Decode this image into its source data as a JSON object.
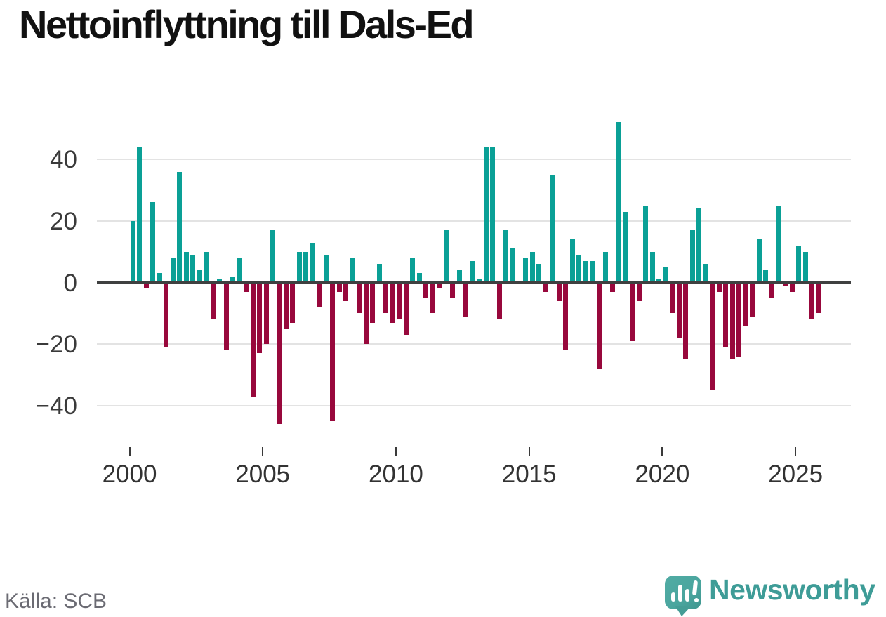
{
  "title": "Nettoinflyttning till Dals-Ed",
  "source": "Källa: SCB",
  "brand": {
    "name": "Newsworthy",
    "icon": "newsworthy-speech-bubble-bar-chart-icon",
    "color": "#3e9c97"
  },
  "colors": {
    "positive": "#0aa096",
    "negative": "#98083c",
    "gridline": "#e3e3e3",
    "zero_line": "#3f4040",
    "axis_text": "#3a3a3a",
    "source_text": "#6b6b73"
  },
  "chart_data": {
    "type": "bar",
    "title": "Nettoinflyttning till Dals-Ed",
    "xlabel": "",
    "ylabel": "",
    "grid": "horizontal",
    "legend": "none",
    "x_tick_labels": [
      "2000",
      "2005",
      "2010",
      "2015",
      "2020",
      "2025"
    ],
    "y_ticks": [
      40,
      20,
      0,
      -20,
      -40
    ],
    "ylim": [
      -50,
      55
    ],
    "x_start": "2000 Q1",
    "x_end": "2025 Q4",
    "positive_color": "#0aa096",
    "negative_color": "#98083c",
    "categories": [
      "2000 Q1",
      "2000 Q2",
      "2000 Q3",
      "2000 Q4",
      "2001 Q1",
      "2001 Q2",
      "2001 Q3",
      "2001 Q4",
      "2002 Q1",
      "2002 Q2",
      "2002 Q3",
      "2002 Q4",
      "2003 Q1",
      "2003 Q2",
      "2003 Q3",
      "2003 Q4",
      "2004 Q1",
      "2004 Q2",
      "2004 Q3",
      "2004 Q4",
      "2005 Q1",
      "2005 Q2",
      "2005 Q3",
      "2005 Q4",
      "2006 Q1",
      "2006 Q2",
      "2006 Q3",
      "2006 Q4",
      "2007 Q1",
      "2007 Q2",
      "2007 Q3",
      "2007 Q4",
      "2008 Q1",
      "2008 Q2",
      "2008 Q3",
      "2008 Q4",
      "2009 Q1",
      "2009 Q2",
      "2009 Q3",
      "2009 Q4",
      "2010 Q1",
      "2010 Q2",
      "2010 Q3",
      "2010 Q4",
      "2011 Q1",
      "2011 Q2",
      "2011 Q3",
      "2011 Q4",
      "2012 Q1",
      "2012 Q2",
      "2012 Q3",
      "2012 Q4",
      "2013 Q1",
      "2013 Q2",
      "2013 Q3",
      "2013 Q4",
      "2014 Q1",
      "2014 Q2",
      "2014 Q3",
      "2014 Q4",
      "2015 Q1",
      "2015 Q2",
      "2015 Q3",
      "2015 Q4",
      "2016 Q1",
      "2016 Q2",
      "2016 Q3",
      "2016 Q4",
      "2017 Q1",
      "2017 Q2",
      "2017 Q3",
      "2017 Q4",
      "2018 Q1",
      "2018 Q2",
      "2018 Q3",
      "2018 Q4",
      "2019 Q1",
      "2019 Q2",
      "2019 Q3",
      "2019 Q4",
      "2020 Q1",
      "2020 Q2",
      "2020 Q3",
      "2020 Q4",
      "2021 Q1",
      "2021 Q2",
      "2021 Q3",
      "2021 Q4",
      "2022 Q1",
      "2022 Q2",
      "2022 Q3",
      "2022 Q4",
      "2023 Q1",
      "2023 Q2",
      "2023 Q3",
      "2023 Q4",
      "2024 Q1",
      "2024 Q2",
      "2024 Q3",
      "2024 Q4",
      "2025 Q1",
      "2025 Q2",
      "2025 Q3",
      "2025 Q4"
    ],
    "values": [
      20,
      44,
      -2,
      26,
      3,
      -21,
      8,
      36,
      10,
      9,
      4,
      10,
      -12,
      1,
      -22,
      2,
      8,
      -3,
      -37,
      -23,
      -20,
      17,
      -46,
      -15,
      -13,
      10,
      10,
      13,
      -8,
      9,
      -45,
      -3,
      -6,
      8,
      -10,
      -20,
      -13,
      6,
      -10,
      -13,
      -12,
      -17,
      8,
      3,
      -5,
      -10,
      -2,
      17,
      -5,
      4,
      -11,
      7,
      1,
      44,
      44,
      -12,
      17,
      11,
      0,
      8,
      10,
      6,
      -3,
      35,
      -6,
      -22,
      14,
      9,
      7,
      7,
      -28,
      10,
      -3,
      52,
      23,
      -19,
      -6,
      25,
      10,
      1,
      5,
      -10,
      -18,
      -25,
      17,
      24,
      6,
      -35,
      -3,
      -21,
      -25,
      -24,
      -14,
      -11,
      14,
      4,
      -5,
      25,
      -1,
      -3,
      12,
      10,
      -12,
      -10
    ]
  }
}
